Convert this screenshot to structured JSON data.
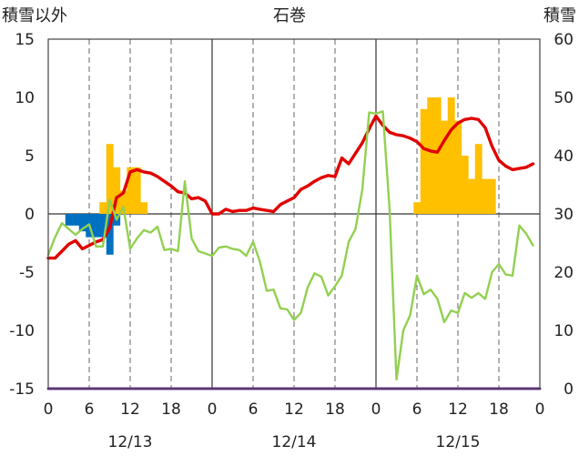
{
  "chart_data": {
    "type": "bar+line",
    "title": "石巻",
    "left_axis_label": "積雪以外",
    "right_axis_label": "積雪",
    "left_ylim": [
      -15,
      15
    ],
    "left_ticks": [
      "15",
      "10",
      "5",
      "0",
      "-5",
      "-10",
      "-15"
    ],
    "right_ylim": [
      0,
      60
    ],
    "right_ticks": [
      "60",
      "50",
      "40",
      "30",
      "20",
      "10",
      "0"
    ],
    "hour_ticks": [
      "0",
      "6",
      "12",
      "18",
      "0",
      "6",
      "12",
      "18",
      "0",
      "6",
      "12",
      "18",
      "0"
    ],
    "x_range_hours": [
      0,
      72
    ],
    "day_labels": [
      {
        "label": "12/13",
        "center_hour": 12
      },
      {
        "label": "12/14",
        "center_hour": 36
      },
      {
        "label": "12/15",
        "center_hour": 60
      }
    ],
    "series": [
      {
        "kind": "bar",
        "color": "#FFC000",
        "hours": [
          8,
          9,
          10,
          11,
          12,
          13,
          14,
          54,
          55,
          56,
          57,
          58,
          59,
          60,
          61,
          62,
          63,
          64,
          65,
          66
        ],
        "values": [
          1,
          6,
          4,
          2,
          4,
          4,
          1,
          1,
          9,
          10,
          10,
          8,
          10,
          8,
          5,
          3,
          6,
          3,
          3,
          0
        ]
      },
      {
        "kind": "bar",
        "color": "#0070C0",
        "hours": [
          3,
          4,
          5,
          6,
          7,
          8,
          9,
          10
        ],
        "values": [
          -1,
          -1,
          -1.5,
          -2,
          -2,
          -2,
          -3.5,
          -1
        ]
      },
      {
        "kind": "line",
        "color": "#E00000",
        "hours": [
          0,
          1,
          2,
          3,
          4,
          5,
          6,
          7,
          8,
          9,
          10,
          11,
          12,
          13,
          14,
          15,
          16,
          17,
          18,
          19,
          20,
          21,
          22,
          23,
          24,
          25,
          26,
          27,
          28,
          29,
          30,
          31,
          32,
          33,
          34,
          35,
          36,
          37,
          38,
          39,
          40,
          41,
          42,
          43,
          44,
          45,
          46,
          47,
          48,
          49,
          50,
          51,
          52,
          53,
          54,
          55,
          56,
          57,
          58,
          59,
          60,
          61,
          62,
          63,
          64,
          65,
          66,
          67,
          68,
          69,
          70,
          71
        ],
        "values": [
          -3.8,
          -3.8,
          -3.2,
          -2.6,
          -2.3,
          -3,
          -2.7,
          -2.4,
          -2.2,
          -1.2,
          1.4,
          1.8,
          3.6,
          3.8,
          3.6,
          3.5,
          3.2,
          2.8,
          2.4,
          1.9,
          1.8,
          1.3,
          1.4,
          1.1,
          0,
          0,
          0.4,
          0.2,
          0.3,
          0.3,
          0.5,
          0.4,
          0.3,
          0.2,
          0.8,
          1.1,
          1.4,
          2.1,
          2.4,
          2.8,
          3.1,
          3.3,
          3.2,
          4.8,
          4.3,
          5.2,
          6.1,
          7.3,
          8.4,
          7.6,
          7.0,
          6.8,
          6.7,
          6.5,
          6.2,
          5.6,
          5.4,
          5.3,
          6.3,
          7.2,
          7.8,
          8.1,
          8.2,
          8.1,
          7.4,
          5.8,
          4.6,
          4.1,
          3.8,
          3.9,
          4,
          4.3
        ]
      },
      {
        "kind": "line",
        "color": "#92D050",
        "hours": [
          0,
          1,
          2,
          3,
          4,
          5,
          6,
          7,
          8,
          9,
          10,
          11,
          12,
          13,
          14,
          15,
          16,
          17,
          18,
          19,
          20,
          21,
          22,
          23,
          24,
          25,
          26,
          27,
          28,
          29,
          30,
          31,
          32,
          33,
          34,
          35,
          36,
          37,
          38,
          39,
          40,
          41,
          42,
          43,
          44,
          45,
          46,
          47,
          48,
          49,
          50,
          51,
          52,
          53,
          54,
          55,
          56,
          57,
          58,
          59,
          60,
          61,
          62,
          63,
          64,
          65,
          66,
          67,
          68,
          69,
          70,
          71
        ],
        "values": [
          -3.5,
          -2,
          -0.8,
          -1.3,
          -1.8,
          -1.3,
          -0.9,
          -2.8,
          -2.8,
          1.2,
          -0.5,
          0.6,
          -3,
          -2.1,
          -1.4,
          -1.6,
          -1.1,
          -3.1,
          -3.0,
          -3.2,
          2.8,
          -2.1,
          -3.2,
          -3.4,
          -3.6,
          -2.9,
          -2.8,
          -3.0,
          -3.1,
          -3.6,
          -2.4,
          -4.1,
          -6.6,
          -6.5,
          -8.1,
          -8.2,
          -9.1,
          -8.5,
          -6.3,
          -5.1,
          -5.4,
          -7.0,
          -6.2,
          -5.3,
          -2.4,
          -1.3,
          2.1,
          8.7,
          8.6,
          8.8,
          0.3,
          -14.2,
          -10.0,
          -8.7,
          -5.3,
          -6.9,
          -6.5,
          -7.3,
          -9.3,
          -8.3,
          -8.5,
          -6.8,
          -7.2,
          -6.8,
          -7.3,
          -5.0,
          -4.3,
          -5.2,
          -5.3,
          -1.0,
          -1.7,
          -2.7
        ]
      },
      {
        "kind": "line",
        "color": "#7030A0",
        "hours": [
          0,
          72
        ],
        "values": [
          -15,
          -15
        ]
      }
    ],
    "grid": "dashed vertical at 6-hour ticks, solid at day boundaries"
  }
}
